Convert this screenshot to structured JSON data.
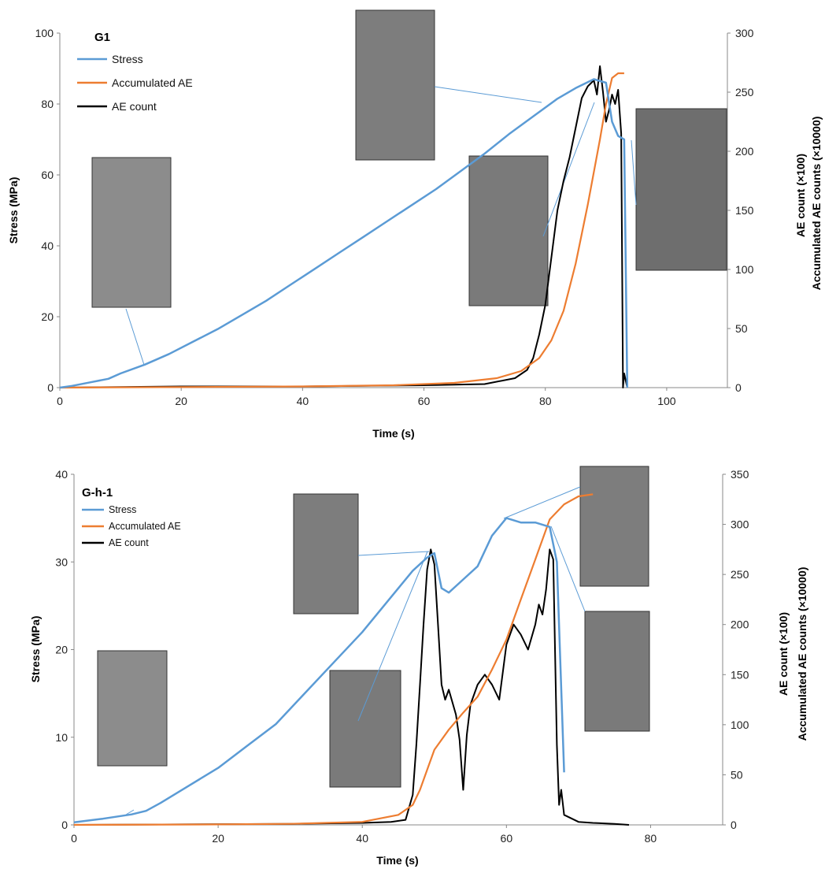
{
  "chart_data": [
    {
      "type": "line",
      "title": "G1",
      "xlabel": "Time (s)",
      "ylabel": "Stress (MPa)",
      "y2label_line1": "AE count (×100)",
      "y2label_line2": "Accumulated AE counts (×10000)",
      "xlim": [
        0,
        110
      ],
      "ylim": [
        0,
        100
      ],
      "y2lim": [
        0,
        300
      ],
      "xticks": [
        "0",
        "20",
        "40",
        "60",
        "80",
        "100"
      ],
      "yticks": [
        "0",
        "20",
        "40",
        "60",
        "80",
        "100"
      ],
      "y2ticks": [
        "0",
        "50",
        "100",
        "150",
        "200",
        "250",
        "300"
      ],
      "legend": "top-left",
      "colors": {
        "stress": "#5b9bd5",
        "accumulated": "#ed7d31",
        "count": "#000000"
      },
      "series": [
        {
          "name": "Stress",
          "axis": "left",
          "x": [
            0,
            2,
            5,
            8,
            10,
            14,
            18,
            22,
            26,
            30,
            34,
            38,
            42,
            46,
            50,
            54,
            58,
            62,
            66,
            70,
            74,
            78,
            82,
            85,
            88,
            90,
            91,
            92,
            93,
            93.5
          ],
          "y": [
            0,
            0.5,
            1.5,
            2.5,
            4,
            6.5,
            9.5,
            13,
            16.5,
            20.5,
            24.5,
            29,
            33.5,
            38,
            42.5,
            47,
            51.5,
            56,
            61,
            66,
            71.5,
            76.5,
            81.5,
            84.5,
            87,
            86,
            75,
            71,
            70,
            0
          ]
        },
        {
          "name": "Accumulated AE",
          "axis": "right",
          "x": [
            0,
            20,
            40,
            55,
            65,
            72,
            76,
            79,
            81,
            83,
            85,
            87,
            89,
            90,
            91,
            92,
            93
          ],
          "y": [
            0,
            0.5,
            1,
            2,
            4,
            8,
            14,
            25,
            40,
            65,
            105,
            155,
            210,
            240,
            262,
            266,
            266
          ]
        },
        {
          "name": "AE count",
          "axis": "right",
          "x": [
            0,
            20,
            40,
            60,
            70,
            75,
            77,
            78,
            79,
            80,
            81,
            82,
            83,
            84,
            85,
            86,
            87,
            88,
            88.5,
            89,
            89.5,
            90,
            90.5,
            91,
            91.5,
            92,
            92.5,
            92.8,
            93,
            93.5
          ],
          "y": [
            0,
            1,
            1,
            2,
            3,
            8,
            15,
            25,
            45,
            70,
            110,
            150,
            175,
            195,
            220,
            245,
            255,
            260,
            248,
            272,
            250,
            225,
            235,
            248,
            240,
            252,
            215,
            0,
            12,
            0
          ]
        }
      ]
    },
    {
      "type": "line",
      "title": "G-h-1",
      "xlabel": "Time (s)",
      "ylabel": "Stress (MPa)",
      "y2label_line1": "AE count (×100)",
      "y2label_line2": "Accumulated AE counts (×10000)",
      "xlim": [
        0,
        90
      ],
      "ylim": [
        0,
        40
      ],
      "y2lim": [
        0,
        350
      ],
      "xticks": [
        "0",
        "20",
        "40",
        "60",
        "80"
      ],
      "yticks": [
        "0",
        "10",
        "20",
        "30",
        "40"
      ],
      "y2ticks": [
        "0",
        "50",
        "100",
        "150",
        "200",
        "250",
        "300",
        "350"
      ],
      "legend": "top-left",
      "colors": {
        "stress": "#5b9bd5",
        "accumulated": "#ed7d31",
        "count": "#000000"
      },
      "series": [
        {
          "name": "Stress",
          "axis": "left",
          "x": [
            0,
            4,
            8,
            10,
            12,
            16,
            20,
            24,
            28,
            32,
            36,
            40,
            44,
            47,
            49,
            50,
            51,
            52,
            54,
            56,
            58,
            60,
            62,
            64,
            66,
            67,
            67.5,
            68
          ],
          "y": [
            0.3,
            0.7,
            1.2,
            1.6,
            2.5,
            4.5,
            6.5,
            9,
            11.5,
            15,
            18.5,
            22,
            26,
            29,
            30.5,
            31,
            27,
            26.5,
            28,
            29.5,
            33,
            35,
            34.5,
            34.5,
            34,
            30,
            18,
            6
          ]
        },
        {
          "name": "Accumulated AE",
          "axis": "right",
          "x": [
            0,
            20,
            30,
            40,
            45,
            47,
            48,
            49,
            50,
            52,
            54,
            56,
            58,
            60,
            62,
            64,
            66,
            68,
            70,
            72
          ],
          "y": [
            0,
            0.5,
            1,
            3,
            10,
            20,
            35,
            55,
            75,
            95,
            112,
            128,
            155,
            185,
            225,
            265,
            305,
            320,
            328,
            330
          ]
        },
        {
          "name": "AE count",
          "axis": "right",
          "x": [
            0,
            30,
            40,
            44,
            46,
            47,
            47.5,
            48,
            48.5,
            49,
            49.5,
            50,
            50.5,
            51,
            51.5,
            52,
            53,
            53.5,
            54,
            54.5,
            55,
            56,
            57,
            58,
            59,
            60,
            61,
            62,
            63,
            64,
            64.5,
            65,
            65.5,
            66,
            66.5,
            67,
            67.3,
            67.6,
            68,
            70,
            72,
            75,
            77
          ],
          "y": [
            0,
            1,
            2,
            3,
            5,
            30,
            80,
            140,
            200,
            255,
            275,
            260,
            200,
            140,
            125,
            135,
            110,
            85,
            35,
            90,
            120,
            140,
            150,
            140,
            125,
            180,
            200,
            190,
            175,
            200,
            220,
            210,
            235,
            275,
            265,
            80,
            20,
            35,
            10,
            3,
            2,
            1,
            0
          ]
        }
      ]
    }
  ]
}
